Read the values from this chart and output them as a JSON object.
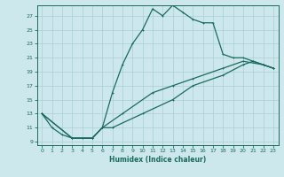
{
  "title": "",
  "xlabel": "Humidex (Indice chaleur)",
  "bg_color": "#cce8ec",
  "grid_color": "#aacdd4",
  "line_color": "#1a6b5e",
  "xlim": [
    -0.5,
    23.5
  ],
  "ylim": [
    8.5,
    28.5
  ],
  "xticks": [
    0,
    1,
    2,
    3,
    4,
    5,
    6,
    7,
    8,
    9,
    10,
    11,
    12,
    13,
    14,
    15,
    16,
    17,
    18,
    19,
    20,
    21,
    22,
    23
  ],
  "yticks": [
    9,
    11,
    13,
    15,
    17,
    19,
    21,
    23,
    25,
    27
  ],
  "line1_x": [
    0,
    1,
    2,
    3,
    4,
    5,
    6,
    7,
    8,
    9,
    10,
    11,
    12,
    13,
    14,
    15,
    16,
    17,
    18,
    19,
    20,
    21,
    22,
    23
  ],
  "line1_y": [
    13,
    11,
    10,
    9.5,
    9.5,
    9.5,
    11,
    16,
    20,
    23,
    25,
    28,
    27,
    28.5,
    27.5,
    26.5,
    26,
    26,
    21.5,
    21,
    21,
    20.5,
    20,
    19.5
  ],
  "line2_x": [
    0,
    3,
    5,
    6,
    7,
    10,
    13,
    15,
    18,
    20,
    21,
    22,
    23
  ],
  "line2_y": [
    13,
    9.5,
    9.5,
    11,
    11,
    13,
    15,
    17,
    18.5,
    20,
    20.5,
    20,
    19.5
  ],
  "line3_x": [
    0,
    3,
    5,
    6,
    8,
    11,
    13,
    15,
    18,
    20,
    22,
    23
  ],
  "line3_y": [
    13,
    9.5,
    9.5,
    11,
    13,
    16,
    17,
    18,
    19.5,
    20.5,
    20,
    19.5
  ]
}
